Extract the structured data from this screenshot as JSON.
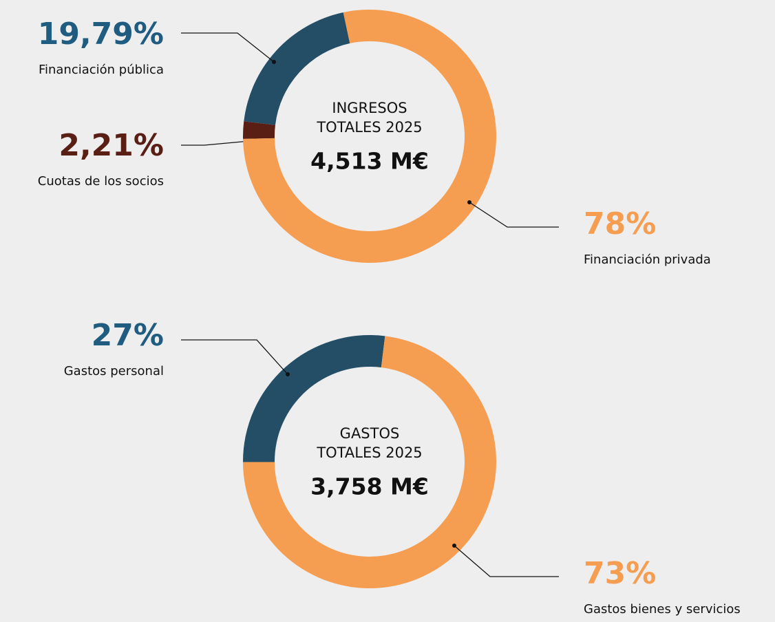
{
  "chart_data": [
    {
      "type": "pie",
      "title": [
        "INGRESOS",
        "TOTALES 2025"
      ],
      "total": "4,513 M€",
      "categories": [
        "Financiación pública",
        "Cuotas de los socios",
        "Financiación privada"
      ],
      "values": [
        19.79,
        2.21,
        78
      ],
      "value_labels": [
        "19,79%",
        "2,21%",
        "78%"
      ],
      "colors": [
        "#244e66",
        "#5a1f14",
        "#f59e52"
      ],
      "label_colors": [
        "#1f5c80",
        "#5a1f14",
        "#f59e52"
      ]
    },
    {
      "type": "pie",
      "title": [
        "GASTOS",
        "TOTALES 2025"
      ],
      "total": "3,758 M€",
      "categories": [
        "Gastos personal",
        "Gastos bienes y servicios"
      ],
      "values": [
        27,
        73
      ],
      "value_labels": [
        "27%",
        "73%"
      ],
      "colors": [
        "#244e66",
        "#f59e52"
      ],
      "label_colors": [
        "#1f5c80",
        "#f59e52"
      ]
    }
  ]
}
